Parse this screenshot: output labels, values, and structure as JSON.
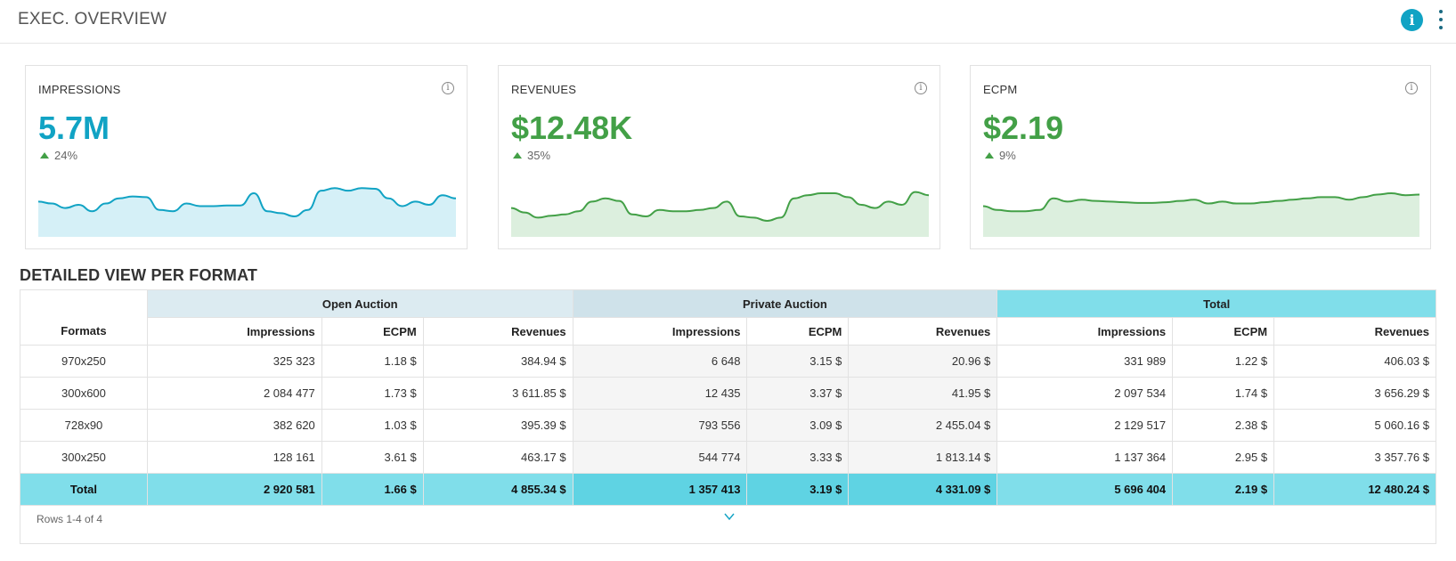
{
  "header": {
    "title": "EXEC. OVERVIEW",
    "info_icon": "info-icon",
    "menu_icon": "kebab-menu-icon"
  },
  "cards": [
    {
      "title": "IMPRESSIONS",
      "value": "5.7M",
      "delta": "24%",
      "color": "#11a3c4",
      "fill": "#d5f0f7",
      "trend": [
        55,
        52,
        45,
        50,
        40,
        52,
        60,
        63,
        62,
        42,
        40,
        52,
        48,
        48,
        49,
        49,
        68,
        40,
        37,
        32,
        42,
        72,
        76,
        72,
        76,
        75,
        60,
        48,
        55,
        50,
        65,
        60
      ]
    },
    {
      "title": "REVENUES",
      "value": "$12.48K",
      "delta": "35%",
      "color": "#43a047",
      "fill": "#dcefde",
      "trend": [
        45,
        38,
        30,
        33,
        35,
        40,
        55,
        60,
        56,
        35,
        32,
        42,
        40,
        40,
        42,
        45,
        55,
        32,
        30,
        25,
        30,
        60,
        65,
        68,
        68,
        62,
        50,
        45,
        55,
        50,
        70,
        65
      ]
    },
    {
      "title": "ECPM",
      "value": "$2.19",
      "delta": "9%",
      "color": "#43a047",
      "fill": "#dcefde",
      "trend": [
        48,
        42,
        40,
        40,
        42,
        60,
        55,
        58,
        56,
        55,
        54,
        53,
        53,
        54,
        56,
        58,
        52,
        55,
        52,
        52,
        54,
        56,
        58,
        60,
        62,
        62,
        58,
        62,
        66,
        68,
        65,
        66
      ]
    }
  ],
  "section": {
    "title": "DETAILED VIEW PER FORMAT"
  },
  "table": {
    "groups": [
      "Open Auction",
      "Private Auction",
      "Total"
    ],
    "first_col": "Formats",
    "columns": [
      "Impressions",
      "ECPM",
      "Revenues",
      "Impressions",
      "ECPM",
      "Revenues",
      "Impressions",
      "ECPM",
      "Revenues"
    ],
    "rows": [
      [
        "970x250",
        "325 323",
        "1.18 $",
        "384.94 $",
        "6 648",
        "3.15 $",
        "20.96 $",
        "331 989",
        "1.22 $",
        "406.03 $"
      ],
      [
        "300x600",
        "2 084 477",
        "1.73 $",
        "3 611.85 $",
        "12 435",
        "3.37 $",
        "41.95 $",
        "2 097 534",
        "1.74 $",
        "3 656.29 $"
      ],
      [
        "728x90",
        "382 620",
        "1.03 $",
        "395.39 $",
        "793 556",
        "3.09 $",
        "2 455.04 $",
        "2 129 517",
        "2.38 $",
        "5 060.16 $"
      ],
      [
        "300x250",
        "128 161",
        "3.61 $",
        "463.17 $",
        "544 774",
        "3.33 $",
        "1 813.14 $",
        "1 137 364",
        "2.95 $",
        "3 357.76 $"
      ]
    ],
    "total": [
      "Total",
      "2 920 581",
      "1.66 $",
      "4 855.34 $",
      "1 357 413",
      "3.19 $",
      "4 331.09 $",
      "5 696 404",
      "2.19 $",
      "12 480.24 $"
    ]
  },
  "footer": {
    "rows_info": "Rows 1-4 of 4",
    "expand_icon": "chevron-down-icon"
  }
}
